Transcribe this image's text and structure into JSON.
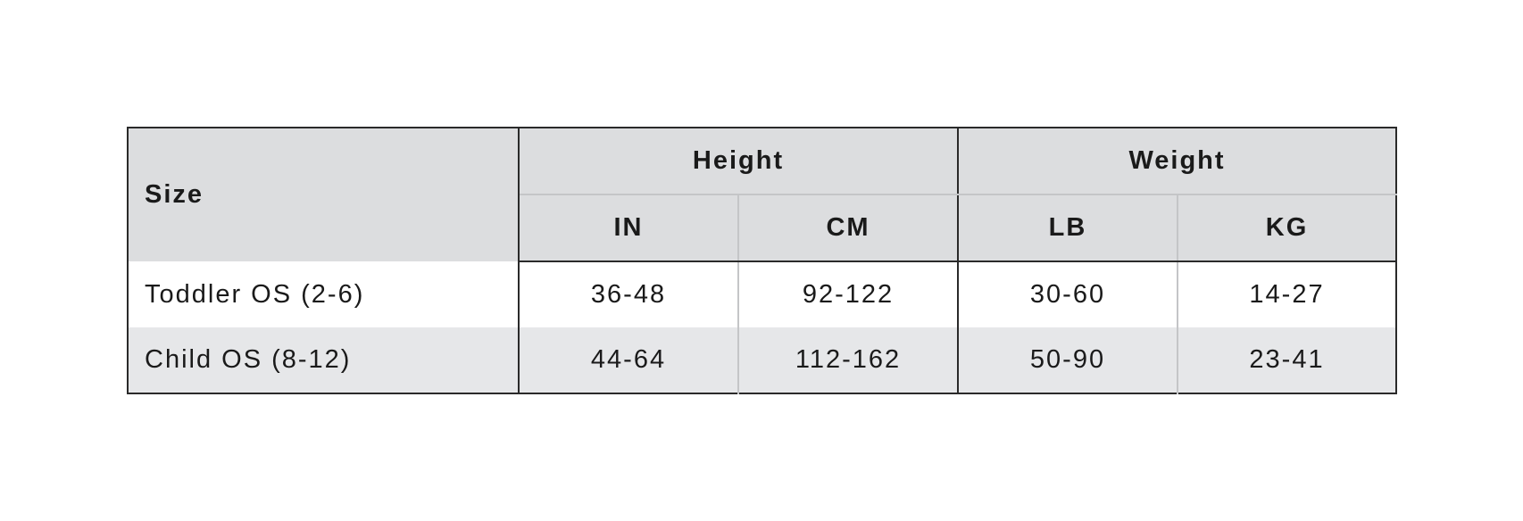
{
  "table": {
    "header": {
      "size": "Size",
      "height": "Height",
      "weight": "Weight",
      "units": [
        "IN",
        "CM",
        "LB",
        "KG"
      ]
    },
    "rows": [
      {
        "size": "Toddler OS (2-6)",
        "in": "36-48",
        "cm": "92-122",
        "lb": "30-60",
        "kg": "14-27"
      },
      {
        "size": "Child OS (8-12)",
        "in": "44-64",
        "cm": "112-162",
        "lb": "50-90",
        "kg": "23-41"
      }
    ]
  },
  "colors": {
    "header_bg": "#dcdddf",
    "alt_row_bg": "#e6e7e9",
    "border": "#2a2a2a"
  }
}
